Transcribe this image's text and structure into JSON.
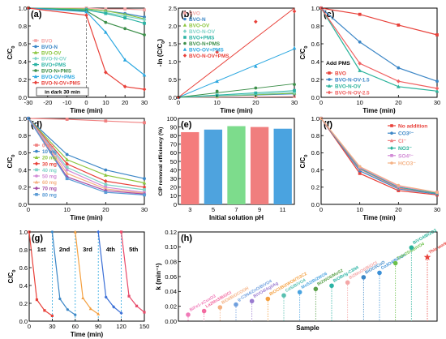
{
  "chart_data": [
    {
      "panel": "(a)",
      "type": "line",
      "xlabel": "Time (min)",
      "ylabel": "C/C0",
      "xlim": [
        -30,
        30
      ],
      "ylim": [
        0,
        1.0
      ],
      "xticks": [
        -30,
        -20,
        -10,
        0,
        10,
        20,
        30
      ],
      "yticks": [
        0.0,
        0.2,
        0.4,
        0.6,
        0.8,
        1.0
      ],
      "annotation": "in dark 30 min",
      "x": [
        -30,
        0,
        10,
        20,
        30
      ],
      "series": [
        {
          "name": "BVO",
          "color": "#f4a6a6",
          "values": [
            1.0,
            1.0,
            0.99,
            0.99,
            0.98
          ]
        },
        {
          "name": "BVO-N",
          "color": "#3b86c6",
          "values": [
            1.0,
            0.99,
            0.97,
            0.94,
            0.9
          ]
        },
        {
          "name": "BVO-OV",
          "color": "#8cc63f",
          "values": [
            1.0,
            0.99,
            0.97,
            0.93,
            0.88
          ]
        },
        {
          "name": "BVO-N-OV",
          "color": "#7fd3c8",
          "values": [
            1.0,
            0.98,
            0.95,
            0.91,
            0.87
          ]
        },
        {
          "name": "BVO+PMS",
          "color": "#2bb3a4",
          "values": [
            1.0,
            0.98,
            0.94,
            0.89,
            0.83
          ]
        },
        {
          "name": "BVO-N+PMS",
          "color": "#3d8f4a",
          "values": [
            1.0,
            0.97,
            0.84,
            0.77,
            0.7
          ]
        },
        {
          "name": "BVO-OV+PMS",
          "color": "#2aa7e0",
          "values": [
            1.0,
            0.96,
            0.73,
            0.42,
            0.25
          ]
        },
        {
          "name": "BVO-N-OV+PMS",
          "color": "#e8413a",
          "values": [
            1.0,
            0.92,
            0.28,
            0.12,
            0.09
          ]
        }
      ]
    },
    {
      "panel": "(b)",
      "type": "scatter",
      "xlabel": "Time (min)",
      "ylabel": "-ln (C/C0)",
      "xlim": [
        0,
        30
      ],
      "ylim": [
        0,
        2.5
      ],
      "xticks": [
        0,
        10,
        20,
        30
      ],
      "yticks": [
        0.0,
        0.5,
        1.0,
        1.5,
        2.0,
        2.5
      ],
      "x": [
        0,
        10,
        20,
        30
      ],
      "series": [
        {
          "name": "BVO",
          "color": "#f4a6a6",
          "values": [
            0,
            0.01,
            0.01,
            0.02
          ]
        },
        {
          "name": "BVO-N",
          "color": "#3b86c6",
          "values": [
            0,
            0.03,
            0.06,
            0.1
          ]
        },
        {
          "name": "BVO-OV",
          "color": "#8cc63f",
          "values": [
            0,
            0.03,
            0.07,
            0.12
          ]
        },
        {
          "name": "BVO-N-OV",
          "color": "#7fd3c8",
          "values": [
            0,
            0.05,
            0.09,
            0.14
          ]
        },
        {
          "name": "BVO+PMS",
          "color": "#2bb3a4",
          "values": [
            0,
            0.06,
            0.12,
            0.19
          ]
        },
        {
          "name": "BVO-N+PMS",
          "color": "#3d8f4a",
          "values": [
            0,
            0.17,
            0.26,
            0.36
          ]
        },
        {
          "name": "BVO-OV+PMS",
          "color": "#2aa7e0",
          "values": [
            0,
            0.45,
            0.87,
            1.38
          ]
        },
        {
          "name": "BVO-N-OV+PMS",
          "color": "#e8413a",
          "values": [
            0,
            1.27,
            2.12,
            2.41
          ]
        }
      ]
    },
    {
      "panel": "(c)",
      "type": "line",
      "xlabel": "Time (min)",
      "ylabel": "C/C0",
      "xlim": [
        0,
        30
      ],
      "ylim": [
        0,
        1.0
      ],
      "xticks": [
        0,
        10,
        20,
        30
      ],
      "yticks": [
        0.0,
        0.2,
        0.4,
        0.6,
        0.8,
        1.0
      ],
      "annotation": "Add PMS",
      "x": [
        0,
        10,
        20,
        30
      ],
      "series": [
        {
          "name": "BVO",
          "color": "#e8413a",
          "values": [
            1.0,
            0.93,
            0.81,
            0.7
          ]
        },
        {
          "name": "BVO-N-OV-1.5",
          "color": "#3b86c6",
          "values": [
            1.0,
            0.62,
            0.33,
            0.18
          ]
        },
        {
          "name": "BVO-N-OV",
          "color": "#2bb39b",
          "values": [
            1.0,
            0.3,
            0.12,
            0.07
          ]
        },
        {
          "name": "BVO-N-OV-2.5",
          "color": "#f06060",
          "values": [
            1.0,
            0.38,
            0.18,
            0.1
          ]
        }
      ]
    },
    {
      "panel": "(d)",
      "type": "line",
      "xlabel": "Time (min)",
      "ylabel": "C/C0",
      "xlim": [
        0,
        30
      ],
      "ylim": [
        0,
        1.0
      ],
      "xticks": [
        0,
        10,
        20,
        30
      ],
      "yticks": [
        0.0,
        0.2,
        0.4,
        0.6,
        0.8,
        1.0
      ],
      "x": [
        0,
        10,
        20,
        30
      ],
      "series": [
        {
          "name": "0 mg",
          "color": "#f08080",
          "values": [
            1.0,
            0.99,
            0.97,
            0.95
          ]
        },
        {
          "name": "10 mg",
          "color": "#3b86c6",
          "values": [
            1.0,
            0.58,
            0.4,
            0.3
          ]
        },
        {
          "name": "20 mg",
          "color": "#8cc63f",
          "values": [
            1.0,
            0.52,
            0.34,
            0.25
          ]
        },
        {
          "name": "30 mg",
          "color": "#e8413a",
          "values": [
            1.0,
            0.47,
            0.27,
            0.2
          ]
        },
        {
          "name": "40 mg",
          "color": "#7fd3c8",
          "values": [
            1.0,
            0.43,
            0.23,
            0.17
          ]
        },
        {
          "name": "50 mg",
          "color": "#d28bd6",
          "values": [
            1.0,
            0.4,
            0.2,
            0.14
          ]
        },
        {
          "name": "60 mg",
          "color": "#f4b183",
          "values": [
            1.0,
            0.36,
            0.18,
            0.13
          ]
        },
        {
          "name": "70 mg",
          "color": "#a64ca6",
          "values": [
            1.0,
            0.32,
            0.16,
            0.12
          ]
        },
        {
          "name": "80 mg",
          "color": "#5b9bd5",
          "values": [
            1.0,
            0.3,
            0.14,
            0.11
          ]
        }
      ]
    },
    {
      "panel": "(e)",
      "type": "bar",
      "xlabel": "Initial solution pH",
      "ylabel": "CIP removal efficiency (%)",
      "ylim": [
        0,
        100
      ],
      "yticks": [
        0,
        10,
        20,
        30,
        40,
        50,
        60,
        70,
        80,
        90,
        100
      ],
      "categories": [
        "3",
        "5",
        "7",
        "9",
        "11"
      ],
      "values": [
        84,
        87,
        91,
        90,
        88
      ],
      "colors": [
        "#f47c7c",
        "#4ea3de",
        "#7ddc8c",
        "#f07e7e",
        "#4aa3e0"
      ]
    },
    {
      "panel": "(f)",
      "type": "line",
      "xlabel": "Time (min)",
      "ylabel": "C/C0",
      "xlim": [
        0,
        30
      ],
      "ylim": [
        0,
        1.0
      ],
      "xticks": [
        0,
        10,
        20,
        30
      ],
      "yticks": [
        0.0,
        0.2,
        0.4,
        0.6,
        0.8,
        1.0
      ],
      "x": [
        0,
        10,
        20,
        30
      ],
      "series": [
        {
          "name": "No addition",
          "color": "#e8413a",
          "values": [
            1.0,
            0.36,
            0.16,
            0.11
          ]
        },
        {
          "name": "CO3²⁻",
          "color": "#3b86c6",
          "values": [
            1.0,
            0.39,
            0.18,
            0.12
          ]
        },
        {
          "name": "Cl⁻",
          "color": "#f08080",
          "values": [
            1.0,
            0.41,
            0.19,
            0.13
          ]
        },
        {
          "name": "NO3⁻",
          "color": "#2bb39b",
          "values": [
            1.0,
            0.42,
            0.2,
            0.13
          ]
        },
        {
          "name": "SO4²⁻",
          "color": "#d28bd6",
          "values": [
            1.0,
            0.43,
            0.21,
            0.14
          ]
        },
        {
          "name": "HCO3⁻",
          "color": "#f4b183",
          "values": [
            1.0,
            0.44,
            0.22,
            0.14
          ]
        }
      ]
    },
    {
      "panel": "(g)",
      "type": "line",
      "xlabel": "Time (min)",
      "ylabel": "C/C0",
      "xlim": [
        0,
        150
      ],
      "ylim": [
        0,
        1.0
      ],
      "xticks": [
        0,
        30,
        60,
        90,
        120,
        150
      ],
      "yticks": [
        0.0,
        0.2,
        0.4,
        0.6,
        0.8,
        1.0
      ],
      "series": [
        {
          "name": "1st",
          "color": "#e8413a",
          "x": [
            0,
            10,
            20,
            30
          ],
          "values": [
            1.0,
            0.24,
            0.12,
            0.06
          ]
        },
        {
          "name": "2nd",
          "color": "#3b86c6",
          "x": [
            30,
            40,
            50,
            60
          ],
          "values": [
            1.0,
            0.25,
            0.13,
            0.07
          ]
        },
        {
          "name": "3rd",
          "color": "#f4a040",
          "x": [
            60,
            70,
            80,
            90
          ],
          "values": [
            1.0,
            0.26,
            0.14,
            0.08
          ]
        },
        {
          "name": "4th",
          "color": "#3b6fd6",
          "x": [
            90,
            100,
            110,
            120
          ],
          "values": [
            1.0,
            0.27,
            0.16,
            0.09
          ]
        },
        {
          "name": "5th",
          "color": "#e84a6a",
          "x": [
            120,
            130,
            140,
            150
          ],
          "values": [
            1.0,
            0.28,
            0.17,
            0.1
          ]
        }
      ]
    },
    {
      "panel": "(h)",
      "type": "scatter",
      "xlabel": "Sample",
      "ylabel": "k (min⁻¹)",
      "ylim": [
        0,
        0.12
      ],
      "yticks": [
        0.0,
        0.02,
        0.04,
        0.06,
        0.08,
        0.1,
        0.12
      ],
      "points": [
        {
          "label": "BiFe1-xCuxO3",
          "value": 0.0087,
          "color": "#f07ab8"
        },
        {
          "label": "La2Mn3/BiOCl",
          "value": 0.0136,
          "color": "#f26aa0"
        },
        {
          "label": "BiOI/BiOCOOH",
          "value": 0.0185,
          "color": "#f4b183"
        },
        {
          "label": "g-C3N4/ZnO/BiVO4",
          "value": 0.0223,
          "color": "#6f9fde"
        },
        {
          "label": "BiVO4/AgI/Ag",
          "value": 0.027,
          "color": "#9a7bd0"
        },
        {
          "label": "BiOCl/Bi2WO6/Ti3C2",
          "value": 0.03,
          "color": "#f4a040"
        },
        {
          "label": "CdS/BiVO4",
          "value": 0.0346,
          "color": "#58c0b0"
        },
        {
          "label": "MoS2/Bi2WO6",
          "value": 0.039,
          "color": "#4aa3e0"
        },
        {
          "label": "Bi2WO6/MoS2",
          "value": 0.0433,
          "color": "#5aa04a"
        },
        {
          "label": "BiOBr/g-C3N4",
          "value": 0.0477,
          "color": "#2bb3a4"
        },
        {
          "label": "Bi2MoO6/BiOCl",
          "value": 0.052,
          "color": "#f4a6a6"
        },
        {
          "label": "BiOCl/CoO",
          "value": 0.059,
          "color": "#3b86c6"
        },
        {
          "label": "Co3O4/BiVO4",
          "value": 0.065,
          "color": "#3b8fd6"
        },
        {
          "label": "ZnIn2S4/BiVO4",
          "value": 0.078,
          "color": "#6cc04a"
        },
        {
          "label": "BiVO4/Bi2O3",
          "value": 0.099,
          "color": "#2bb39b"
        },
        {
          "label": "This work",
          "value": 0.086,
          "color": "#e8413a",
          "marker": "star"
        }
      ]
    }
  ]
}
